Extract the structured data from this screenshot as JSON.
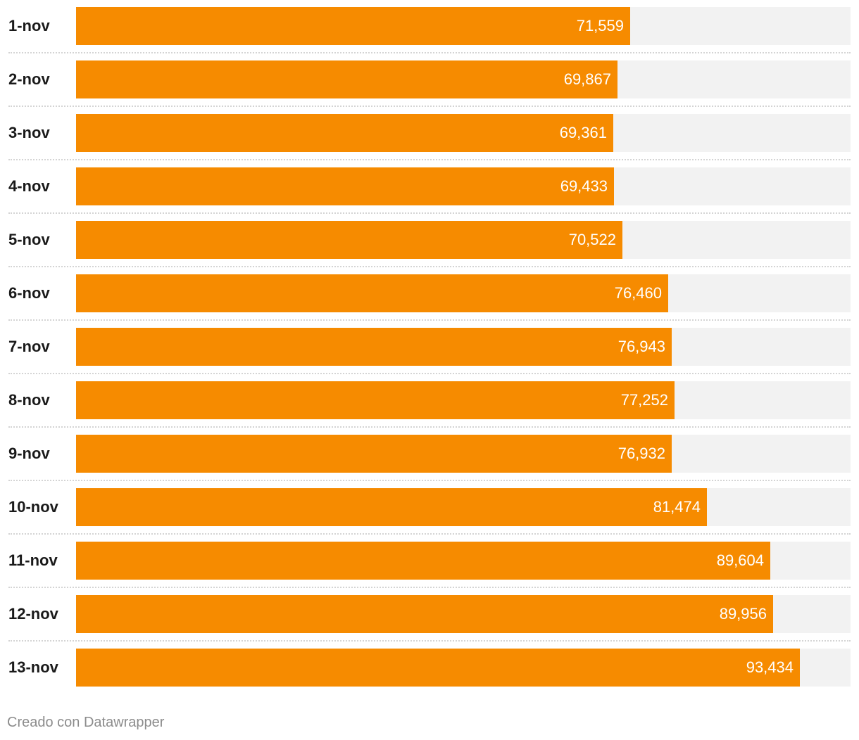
{
  "chart_data": {
    "type": "bar",
    "orientation": "horizontal",
    "categories": [
      "1-nov",
      "2-nov",
      "3-nov",
      "4-nov",
      "5-nov",
      "6-nov",
      "7-nov",
      "8-nov",
      "9-nov",
      "10-nov",
      "11-nov",
      "12-nov",
      "13-nov"
    ],
    "values": [
      71559,
      69867,
      69361,
      69433,
      70522,
      76460,
      76943,
      77252,
      76932,
      81474,
      89604,
      89956,
      93434
    ],
    "value_labels": [
      "71,559",
      "69,867",
      "69,361",
      "69,433",
      "70,522",
      "76,460",
      "76,943",
      "77,252",
      "76,932",
      "81,474",
      "89,604",
      "89,956",
      "93,434"
    ],
    "xlim": [
      0,
      100000
    ],
    "bar_color": "#f68b00",
    "track_color": "#f2f2f2",
    "title": "",
    "xlabel": "",
    "ylabel": ""
  },
  "footer": {
    "credit": "Creado con Datawrapper"
  }
}
